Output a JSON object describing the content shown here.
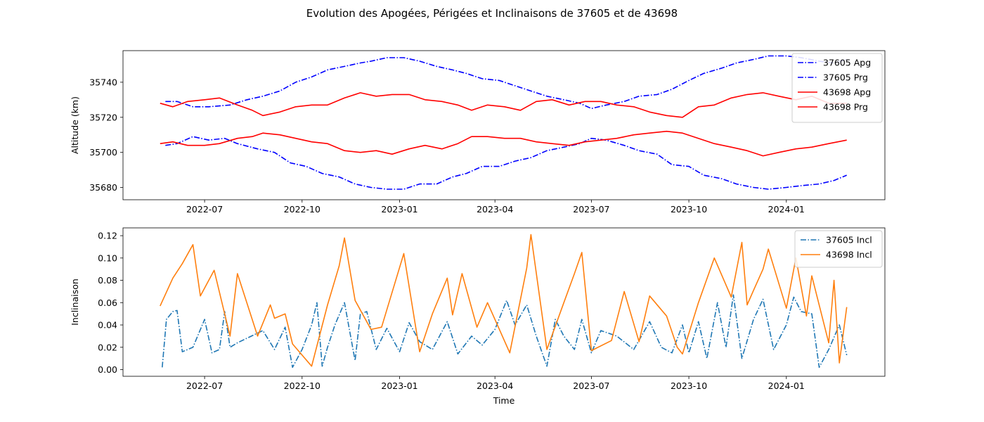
{
  "figure": {
    "title": "Evolution des Apogées, Périgées et Inclinaisons de 37605 et de 43698"
  },
  "colors": {
    "apg_37605": "#0000ff",
    "prg_37605": "#0000ff",
    "apg_43698": "#ff0000",
    "prg_43698": "#ff0000",
    "incl_37605": "#1f77b4",
    "incl_43698": "#ff7f0e"
  },
  "chart_data": [
    {
      "type": "line",
      "ylabel": "Altitude (km)",
      "xlabel": "",
      "xlim": [
        "2022-04-15",
        "2024-04-03"
      ],
      "ylim": [
        35673,
        35758
      ],
      "xticks": [
        "2022-07-01",
        "2022-10-01",
        "2023-01-01",
        "2023-04-01",
        "2023-07-01",
        "2023-10-01",
        "2024-01-01"
      ],
      "xtick_labels": [
        "2022-07",
        "2022-10",
        "2023-01",
        "2023-04",
        "2023-07",
        "2023-10",
        "2024-01"
      ],
      "yticks": [
        35680,
        35700,
        35720,
        35740
      ],
      "grid": false,
      "legend_position": "top-right",
      "series": [
        {
          "name": "37605 Apg",
          "style": "dashdot",
          "color": "#0000ff",
          "x": [
            "2022-05-25",
            "2022-06-05",
            "2022-06-20",
            "2022-07-05",
            "2022-07-25",
            "2022-08-10",
            "2022-08-25",
            "2022-09-10",
            "2022-09-25",
            "2022-10-10",
            "2022-10-25",
            "2022-11-10",
            "2022-11-25",
            "2022-12-05",
            "2022-12-20",
            "2023-01-05",
            "2023-01-20",
            "2023-02-05",
            "2023-02-20",
            "2023-03-05",
            "2023-03-20",
            "2023-04-05",
            "2023-04-20",
            "2023-05-05",
            "2023-05-20",
            "2023-06-05",
            "2023-06-20",
            "2023-07-01",
            "2023-07-15",
            "2023-08-01",
            "2023-08-15",
            "2023-09-01",
            "2023-09-15",
            "2023-10-01",
            "2023-10-15",
            "2023-11-01",
            "2023-11-15",
            "2023-12-01",
            "2023-12-15",
            "2024-01-01",
            "2024-01-15",
            "2024-02-01",
            "2024-02-15",
            "2024-02-27"
          ],
          "values": [
            35729,
            35729,
            35726,
            35726,
            35727,
            35730,
            35732,
            35735,
            35740,
            35743,
            35747,
            35749,
            35751,
            35752,
            35754,
            35754,
            35752,
            35749,
            35747,
            35745,
            35742,
            35741,
            35738,
            35735,
            35732,
            35730,
            35728,
            35725,
            35727,
            35729,
            35732,
            35733,
            35736,
            35741,
            35745,
            35748,
            35751,
            35753,
            35755,
            35755,
            35754,
            35752,
            35751,
            35753
          ]
        },
        {
          "name": "37605 Prg",
          "style": "dashdot",
          "color": "#0000ff",
          "x": [
            "2022-05-25",
            "2022-06-05",
            "2022-06-20",
            "2022-07-05",
            "2022-07-20",
            "2022-08-01",
            "2022-08-20",
            "2022-09-05",
            "2022-09-20",
            "2022-10-05",
            "2022-10-20",
            "2022-11-05",
            "2022-11-20",
            "2022-12-05",
            "2022-12-20",
            "2023-01-05",
            "2023-01-20",
            "2023-02-05",
            "2023-02-20",
            "2023-03-05",
            "2023-03-20",
            "2023-04-05",
            "2023-04-20",
            "2023-05-05",
            "2023-05-20",
            "2023-06-05",
            "2023-06-20",
            "2023-07-01",
            "2023-07-15",
            "2023-08-01",
            "2023-08-15",
            "2023-09-01",
            "2023-09-15",
            "2023-10-01",
            "2023-10-15",
            "2023-11-01",
            "2023-11-15",
            "2023-12-01",
            "2023-12-15",
            "2024-01-01",
            "2024-01-15",
            "2024-02-01",
            "2024-02-15",
            "2024-02-27"
          ],
          "values": [
            35704,
            35705,
            35709,
            35707,
            35708,
            35705,
            35702,
            35700,
            35694,
            35692,
            35688,
            35686,
            35682,
            35680,
            35679,
            35679,
            35682,
            35682,
            35686,
            35688,
            35692,
            35692,
            35695,
            35697,
            35701,
            35703,
            35705,
            35708,
            35707,
            35704,
            35701,
            35699,
            35693,
            35692,
            35687,
            35685,
            35682,
            35680,
            35679,
            35680,
            35681,
            35682,
            35684,
            35687
          ]
        },
        {
          "name": "43698 Apg",
          "style": "solid",
          "color": "#ff0000",
          "x": [
            "2022-05-20",
            "2022-06-01",
            "2022-06-15",
            "2022-07-01",
            "2022-07-15",
            "2022-08-01",
            "2022-08-15",
            "2022-08-25",
            "2022-09-10",
            "2022-09-25",
            "2022-10-10",
            "2022-10-25",
            "2022-11-10",
            "2022-11-25",
            "2022-12-10",
            "2022-12-25",
            "2023-01-10",
            "2023-01-25",
            "2023-02-10",
            "2023-02-25",
            "2023-03-10",
            "2023-03-25",
            "2023-04-10",
            "2023-04-25",
            "2023-05-10",
            "2023-05-25",
            "2023-06-10",
            "2023-06-25",
            "2023-07-10",
            "2023-07-25",
            "2023-08-10",
            "2023-08-25",
            "2023-09-10",
            "2023-09-25",
            "2023-10-10",
            "2023-10-25",
            "2023-11-10",
            "2023-11-25",
            "2023-12-10",
            "2023-12-25",
            "2024-01-10",
            "2024-01-25",
            "2024-02-10",
            "2024-02-27"
          ],
          "values": [
            35728,
            35726,
            35729,
            35730,
            35731,
            35727,
            35724,
            35721,
            35723,
            35726,
            35727,
            35727,
            35731,
            35734,
            35732,
            35733,
            35733,
            35730,
            35729,
            35727,
            35724,
            35727,
            35726,
            35724,
            35729,
            35730,
            35727,
            35729,
            35729,
            35727,
            35726,
            35723,
            35721,
            35720,
            35726,
            35727,
            35731,
            35733,
            35734,
            35732,
            35730,
            35732,
            35728,
            35728
          ]
        },
        {
          "name": "43698 Prg",
          "style": "solid",
          "color": "#ff0000",
          "x": [
            "2022-05-20",
            "2022-06-01",
            "2022-06-15",
            "2022-07-01",
            "2022-07-15",
            "2022-08-01",
            "2022-08-15",
            "2022-08-25",
            "2022-09-10",
            "2022-09-25",
            "2022-10-10",
            "2022-10-25",
            "2022-11-10",
            "2022-11-25",
            "2022-12-10",
            "2022-12-25",
            "2023-01-10",
            "2023-01-25",
            "2023-02-10",
            "2023-02-25",
            "2023-03-10",
            "2023-03-25",
            "2023-04-10",
            "2023-04-25",
            "2023-05-10",
            "2023-05-25",
            "2023-06-10",
            "2023-06-25",
            "2023-07-10",
            "2023-07-25",
            "2023-08-10",
            "2023-08-25",
            "2023-09-10",
            "2023-09-25",
            "2023-10-10",
            "2023-10-25",
            "2023-11-10",
            "2023-11-25",
            "2023-12-10",
            "2023-12-25",
            "2024-01-10",
            "2024-01-25",
            "2024-02-10",
            "2024-02-27"
          ],
          "values": [
            35705,
            35706,
            35704,
            35704,
            35705,
            35708,
            35709,
            35711,
            35710,
            35708,
            35706,
            35705,
            35701,
            35700,
            35701,
            35699,
            35702,
            35704,
            35702,
            35705,
            35709,
            35709,
            35708,
            35708,
            35706,
            35705,
            35704,
            35706,
            35707,
            35708,
            35710,
            35711,
            35712,
            35711,
            35708,
            35705,
            35703,
            35701,
            35698,
            35700,
            35702,
            35703,
            35705,
            35707
          ]
        }
      ]
    },
    {
      "type": "line",
      "ylabel": "Inclinaison",
      "xlabel": "Time",
      "xlim": [
        "2022-04-15",
        "2024-04-03"
      ],
      "ylim": [
        -0.006,
        0.127
      ],
      "xticks": [
        "2022-07-01",
        "2022-10-01",
        "2023-01-01",
        "2023-04-01",
        "2023-07-01",
        "2023-10-01",
        "2024-01-01"
      ],
      "xtick_labels": [
        "2022-07",
        "2022-10",
        "2023-01",
        "2023-04",
        "2023-07",
        "2023-10",
        "2024-01"
      ],
      "yticks": [
        0.0,
        0.02,
        0.04,
        0.06,
        0.08,
        0.1,
        0.12
      ],
      "ytick_labels": [
        "0.00",
        "0.02",
        "0.04",
        "0.06",
        "0.08",
        "0.10",
        "0.12"
      ],
      "grid": false,
      "legend_position": "top-right",
      "series": [
        {
          "name": "37605 Incl",
          "style": "dashdot",
          "color": "#1f77b4",
          "x": [
            "2022-05-22",
            "2022-05-26",
            "2022-06-01",
            "2022-06-05",
            "2022-06-10",
            "2022-06-20",
            "2022-07-01",
            "2022-07-08",
            "2022-07-15",
            "2022-07-20",
            "2022-07-25",
            "2022-08-01",
            "2022-08-25",
            "2022-09-05",
            "2022-09-15",
            "2022-09-22",
            "2022-10-01",
            "2022-10-10",
            "2022-10-15",
            "2022-10-20",
            "2022-10-25",
            "2022-11-01",
            "2022-11-10",
            "2022-11-20",
            "2022-11-25",
            "2022-12-01",
            "2022-12-10",
            "2022-12-20",
            "2023-01-01",
            "2023-01-10",
            "2023-01-20",
            "2023-02-01",
            "2023-02-15",
            "2023-02-25",
            "2023-03-10",
            "2023-03-20",
            "2023-04-01",
            "2023-04-12",
            "2023-04-20",
            "2023-05-01",
            "2023-05-10",
            "2023-05-20",
            "2023-05-28",
            "2023-06-05",
            "2023-06-15",
            "2023-06-22",
            "2023-07-01",
            "2023-07-10",
            "2023-07-25",
            "2023-08-10",
            "2023-08-25",
            "2023-09-05",
            "2023-09-15",
            "2023-09-25",
            "2023-10-01",
            "2023-10-10",
            "2023-10-18",
            "2023-10-28",
            "2023-11-05",
            "2023-11-12",
            "2023-11-20",
            "2023-12-01",
            "2023-12-10",
            "2023-12-20",
            "2024-01-01",
            "2024-01-08",
            "2024-01-15",
            "2024-01-25",
            "2024-02-01",
            "2024-02-10",
            "2024-02-20",
            "2024-02-27"
          ],
          "values": [
            0.002,
            0.045,
            0.052,
            0.053,
            0.016,
            0.02,
            0.045,
            0.015,
            0.018,
            0.052,
            0.02,
            0.024,
            0.035,
            0.018,
            0.038,
            0.002,
            0.018,
            0.04,
            0.06,
            0.003,
            0.02,
            0.04,
            0.06,
            0.008,
            0.05,
            0.052,
            0.018,
            0.037,
            0.016,
            0.042,
            0.025,
            0.018,
            0.043,
            0.014,
            0.03,
            0.022,
            0.036,
            0.062,
            0.04,
            0.058,
            0.03,
            0.003,
            0.045,
            0.03,
            0.018,
            0.045,
            0.015,
            0.035,
            0.03,
            0.018,
            0.043,
            0.02,
            0.015,
            0.04,
            0.015,
            0.043,
            0.01,
            0.06,
            0.02,
            0.067,
            0.01,
            0.045,
            0.063,
            0.018,
            0.04,
            0.065,
            0.052,
            0.05,
            0.002,
            0.018,
            0.04,
            0.013
          ]
        },
        {
          "name": "43698 Incl",
          "style": "solid",
          "color": "#ff7f0e",
          "x": [
            "2022-05-20",
            "2022-06-01",
            "2022-06-10",
            "2022-06-20",
            "2022-06-27",
            "2022-07-10",
            "2022-07-25",
            "2022-08-01",
            "2022-08-20",
            "2022-09-01",
            "2022-09-05",
            "2022-09-15",
            "2022-09-22",
            "2022-10-10",
            "2022-10-25",
            "2022-11-05",
            "2022-11-10",
            "2022-11-20",
            "2022-12-05",
            "2022-12-15",
            "2023-01-05",
            "2023-01-20",
            "2023-02-01",
            "2023-02-15",
            "2023-02-20",
            "2023-03-01",
            "2023-03-15",
            "2023-03-25",
            "2023-04-15",
            "2023-05-01",
            "2023-05-05",
            "2023-05-20",
            "2023-06-05",
            "2023-06-15",
            "2023-06-22",
            "2023-07-01",
            "2023-07-20",
            "2023-08-01",
            "2023-08-15",
            "2023-08-25",
            "2023-09-10",
            "2023-09-20",
            "2023-09-25",
            "2023-10-10",
            "2023-10-25",
            "2023-11-10",
            "2023-11-20",
            "2023-11-25",
            "2023-12-01",
            "2023-12-10",
            "2023-12-15",
            "2024-01-01",
            "2024-01-10",
            "2024-01-20",
            "2024-01-25",
            "2024-02-10",
            "2024-02-15",
            "2024-02-20",
            "2024-02-27"
          ],
          "values": [
            0.057,
            0.082,
            0.095,
            0.112,
            0.066,
            0.089,
            0.03,
            0.086,
            0.03,
            0.058,
            0.046,
            0.05,
            0.023,
            0.003,
            0.058,
            0.093,
            0.118,
            0.062,
            0.036,
            0.038,
            0.104,
            0.016,
            0.05,
            0.082,
            0.049,
            0.086,
            0.038,
            0.06,
            0.015,
            0.091,
            0.121,
            0.018,
            0.06,
            0.086,
            0.105,
            0.017,
            0.026,
            0.07,
            0.025,
            0.066,
            0.048,
            0.02,
            0.014,
            0.06,
            0.1,
            0.065,
            0.114,
            0.058,
            0.071,
            0.09,
            0.108,
            0.055,
            0.1,
            0.048,
            0.084,
            0.024,
            0.08,
            0.006,
            0.056
          ]
        }
      ]
    }
  ]
}
